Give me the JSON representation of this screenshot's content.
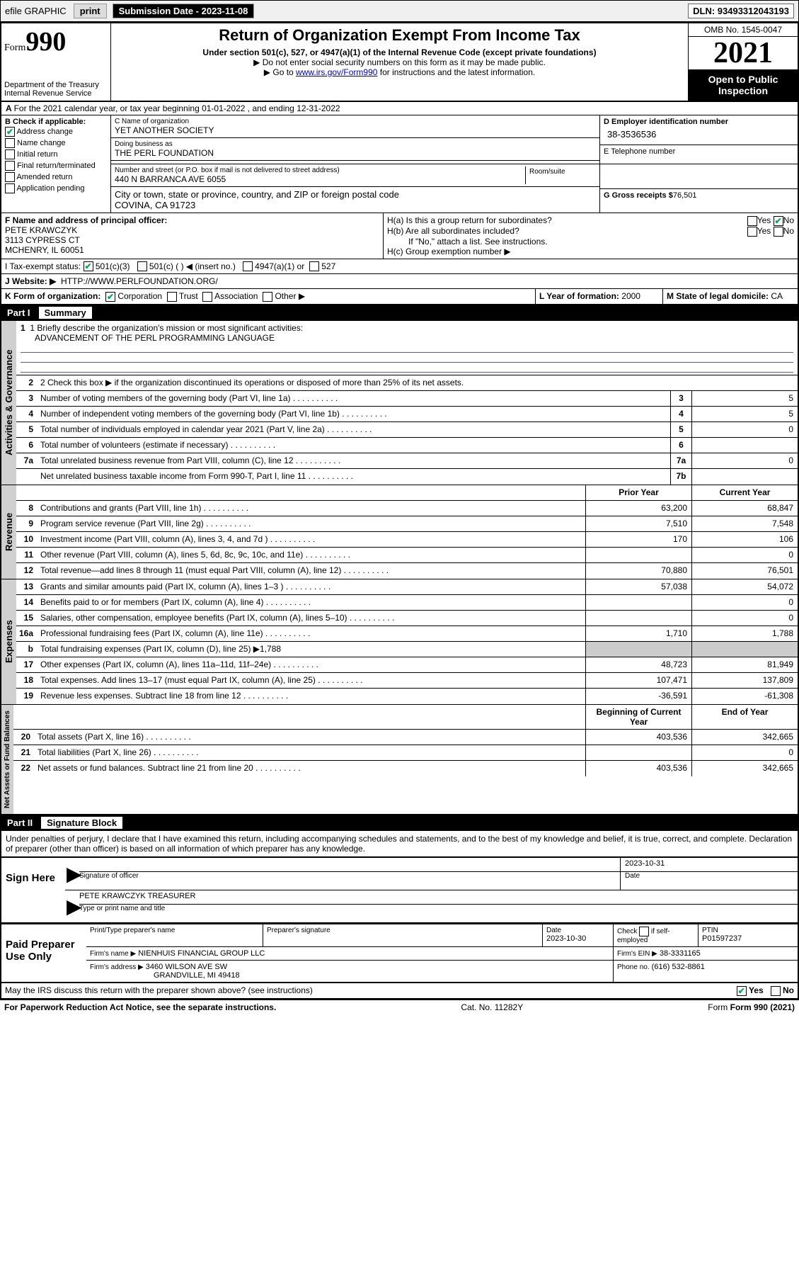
{
  "topbar": {
    "efile": "efile GRAPHIC",
    "print": "print",
    "sub_label": "Submission Date - 2023-11-08",
    "dln": "DLN: 93493312043193"
  },
  "header": {
    "form_word": "Form",
    "form_num": "990",
    "title": "Return of Organization Exempt From Income Tax",
    "subtitle": "Under section 501(c), 527, or 4947(a)(1) of the Internal Revenue Code (except private foundations)",
    "note1": "▶ Do not enter social security numbers on this form as it may be made public.",
    "note2_pre": "▶ Go to ",
    "note2_link": "www.irs.gov/Form990",
    "note2_post": " for instructions and the latest information.",
    "dept": "Department of the Treasury",
    "irs": "Internal Revenue Service",
    "omb": "OMB No. 1545-0047",
    "year": "2021",
    "open_public": "Open to Public Inspection"
  },
  "section_a": {
    "prefix": "A",
    "text": "For the 2021 calendar year, or tax year beginning 01-01-2022   , and ending 12-31-2022"
  },
  "section_b": {
    "label": "B Check if applicable:",
    "items": [
      {
        "label": "Address change",
        "checked": true
      },
      {
        "label": "Name change",
        "checked": false
      },
      {
        "label": "Initial return",
        "checked": false
      },
      {
        "label": "Final return/terminated",
        "checked": false
      },
      {
        "label": "Amended return",
        "checked": false
      },
      {
        "label": "Application pending",
        "checked": false
      }
    ]
  },
  "section_c": {
    "name_lbl": "C Name of organization",
    "name_val": "YET ANOTHER SOCIETY",
    "dba_lbl": "Doing business as",
    "dba_val": "THE PERL FOUNDATION",
    "addr_lbl": "Number and street (or P.O. box if mail is not delivered to street address)",
    "room_lbl": "Room/suite",
    "addr_val": "440 N BARRANCA AVE 6055",
    "city_lbl": "City or town, state or province, country, and ZIP or foreign postal code",
    "city_val": "COVINA, CA  91723"
  },
  "section_d": {
    "ein_lbl": "D Employer identification number",
    "ein_val": "38-3536536",
    "phone_lbl": "E Telephone number",
    "phone_val": "",
    "gross_lbl": "G Gross receipts $",
    "gross_val": "76,501"
  },
  "section_f": {
    "lbl": "F  Name and address of principal officer:",
    "name": "PETE KRAWCZYK",
    "addr1": "3113 CYPRESS CT",
    "addr2": "MCHENRY, IL  60051"
  },
  "section_h": {
    "ha": "H(a)  Is this a group return for subordinates?",
    "hb": "H(b)  Are all subordinates included?",
    "hb_note": "If \"No,\" attach a list. See instructions.",
    "hc": "H(c)  Group exemption number ▶",
    "yes": "Yes",
    "no": "No"
  },
  "section_i": {
    "lbl": "I     Tax-exempt status:",
    "opt1": "501(c)(3)",
    "opt2": "501(c) (  ) ◀ (insert no.)",
    "opt3": "4947(a)(1) or",
    "opt4": "527"
  },
  "section_j": {
    "lbl": "J    Website: ▶",
    "val": "HTTP://WWW.PERLFOUNDATION.ORG/"
  },
  "section_k": {
    "lbl": "K Form of organization:",
    "opts": [
      "Corporation",
      "Trust",
      "Association",
      "Other ▶"
    ]
  },
  "section_l": {
    "lbl": "L Year of formation:",
    "val": "2000"
  },
  "section_m": {
    "lbl": "M State of legal domicile:",
    "val": "CA"
  },
  "part1": {
    "title": "Part I",
    "subtitle": "Summary"
  },
  "gov_label": "Activities & Governance",
  "rev_label": "Revenue",
  "exp_label": "Expenses",
  "net_label": "Net Assets or Fund Balances",
  "mission": {
    "line1_lbl": "1   Briefly describe the organization's mission or most significant activities:",
    "line1_val": "ADVANCEMENT OF THE PERL PROGRAMMING LANGUAGE"
  },
  "gov_lines": {
    "l2": "2    Check this box ▶        if the organization discontinued its operations or disposed of more than 25% of its net assets.",
    "l3": {
      "text": "Number of voting members of the governing body (Part VI, line 1a)",
      "box": "3",
      "val": "5"
    },
    "l4": {
      "text": "Number of independent voting members of the governing body (Part VI, line 1b)",
      "box": "4",
      "val": "5"
    },
    "l5": {
      "text": "Total number of individuals employed in calendar year 2021 (Part V, line 2a)",
      "box": "5",
      "val": "0"
    },
    "l6": {
      "text": "Total number of volunteers (estimate if necessary)",
      "box": "6",
      "val": ""
    },
    "l7a": {
      "text": "Total unrelated business revenue from Part VIII, column (C), line 12",
      "box": "7a",
      "val": "0"
    },
    "l7b": {
      "text": "Net unrelated business taxable income from Form 990-T, Part I, line 11",
      "box": "7b",
      "val": ""
    }
  },
  "col_headers": {
    "prior": "Prior Year",
    "current": "Current Year",
    "begin": "Beginning of Current Year",
    "end": "End of Year"
  },
  "rev_lines": [
    {
      "n": "8",
      "text": "Contributions and grants (Part VIII, line 1h)",
      "prior": "63,200",
      "curr": "68,847"
    },
    {
      "n": "9",
      "text": "Program service revenue (Part VIII, line 2g)",
      "prior": "7,510",
      "curr": "7,548"
    },
    {
      "n": "10",
      "text": "Investment income (Part VIII, column (A), lines 3, 4, and 7d )",
      "prior": "170",
      "curr": "106"
    },
    {
      "n": "11",
      "text": "Other revenue (Part VIII, column (A), lines 5, 6d, 8c, 9c, 10c, and 11e)",
      "prior": "",
      "curr": "0"
    },
    {
      "n": "12",
      "text": "Total revenue—add lines 8 through 11 (must equal Part VIII, column (A), line 12)",
      "prior": "70,880",
      "curr": "76,501"
    }
  ],
  "exp_lines": [
    {
      "n": "13",
      "text": "Grants and similar amounts paid (Part IX, column (A), lines 1–3 )",
      "prior": "57,038",
      "curr": "54,072"
    },
    {
      "n": "14",
      "text": "Benefits paid to or for members (Part IX, column (A), line 4)",
      "prior": "",
      "curr": "0"
    },
    {
      "n": "15",
      "text": "Salaries, other compensation, employee benefits (Part IX, column (A), lines 5–10)",
      "prior": "",
      "curr": "0"
    },
    {
      "n": "16a",
      "text": "Professional fundraising fees (Part IX, column (A), line 11e)",
      "prior": "1,710",
      "curr": "1,788"
    },
    {
      "n": "b",
      "text": "Total fundraising expenses (Part IX, column (D), line 25) ▶1,788",
      "prior": "SHADE",
      "curr": "SHADE"
    },
    {
      "n": "17",
      "text": "Other expenses (Part IX, column (A), lines 11a–11d, 11f–24e)",
      "prior": "48,723",
      "curr": "81,949"
    },
    {
      "n": "18",
      "text": "Total expenses. Add lines 13–17 (must equal Part IX, column (A), line 25)",
      "prior": "107,471",
      "curr": "137,809"
    },
    {
      "n": "19",
      "text": "Revenue less expenses. Subtract line 18 from line 12",
      "prior": "-36,591",
      "curr": "-61,308"
    }
  ],
  "net_lines": [
    {
      "n": "20",
      "text": "Total assets (Part X, line 16)",
      "prior": "403,536",
      "curr": "342,665"
    },
    {
      "n": "21",
      "text": "Total liabilities (Part X, line 26)",
      "prior": "",
      "curr": "0"
    },
    {
      "n": "22",
      "text": "Net assets or fund balances. Subtract line 21 from line 20",
      "prior": "403,536",
      "curr": "342,665"
    }
  ],
  "part2": {
    "title": "Part II",
    "subtitle": "Signature Block"
  },
  "penalties": "Under penalties of perjury, I declare that I have examined this return, including accompanying schedules and statements, and to the best of my knowledge and belief, it is true, correct, and complete. Declaration of preparer (other than officer) is based on all information of which preparer has any knowledge.",
  "sign": {
    "label": "Sign Here",
    "sig_of_officer": "Signature of officer",
    "date_lbl": "Date",
    "date_val": "2023-10-31",
    "name_title": "PETE KRAWCZYK TREASURER",
    "type_name": "Type or print name and title"
  },
  "preparer": {
    "label": "Paid Preparer Use Only",
    "print_name_lbl": "Print/Type preparer's name",
    "sig_lbl": "Preparer's signature",
    "date_lbl": "Date",
    "date_val": "2023-10-30",
    "check_lbl": "Check         if self-employed",
    "ptin_lbl": "PTIN",
    "ptin_val": "P01597237",
    "firm_name_lbl": "Firm's name    ▶",
    "firm_name_val": "NIENHUIS FINANCIAL GROUP LLC",
    "firm_ein_lbl": "Firm's EIN ▶",
    "firm_ein_val": "38-3331165",
    "firm_addr_lbl": "Firm's address ▶",
    "firm_addr_val1": "3460 WILSON AVE SW",
    "firm_addr_val2": "GRANDVILLE, MI  49418",
    "phone_lbl": "Phone no.",
    "phone_val": "(616) 532-8861"
  },
  "discuss": {
    "text": "May the IRS discuss this return with the preparer shown above? (see instructions)",
    "yes": "Yes",
    "no": "No"
  },
  "footer": {
    "paperwork": "For Paperwork Reduction Act Notice, see the separate instructions.",
    "cat": "Cat. No. 11282Y",
    "form": "Form 990 (2021)"
  }
}
